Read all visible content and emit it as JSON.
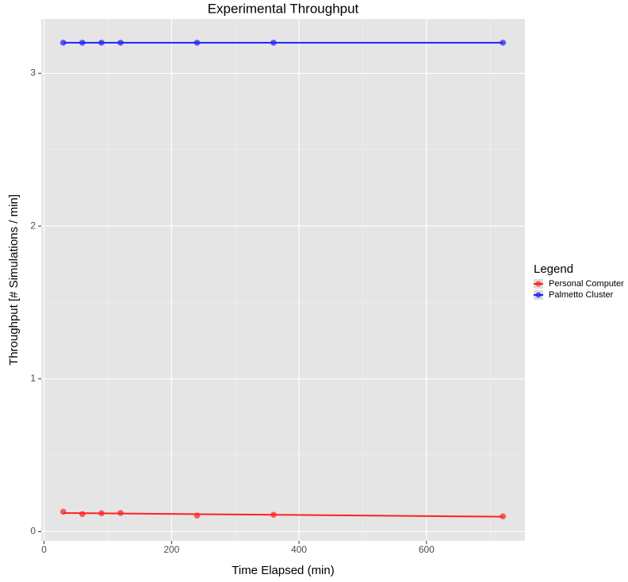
{
  "chart_data": {
    "type": "scatter",
    "title": "Experimental Throughput",
    "x_label": "Time Elapsed (min)",
    "y_label": "Throughput [# Simulations / min]",
    "legend_title": "Legend",
    "x": [
      30,
      60,
      90,
      120,
      240,
      360,
      720
    ],
    "series": [
      {
        "name": "Personal Computer",
        "color": "#ff2020",
        "values": [
          0.13,
          0.115,
          0.12,
          0.122,
          0.105,
          0.11,
          0.1
        ]
      },
      {
        "name": "Palmetto Cluster",
        "color": "#2020ff",
        "values": [
          3.2,
          3.2,
          3.2,
          3.2,
          3.2,
          3.2,
          3.2
        ]
      }
    ],
    "xlim": [
      -4.5,
      754.5
    ],
    "xticks": [
      0,
      200,
      400,
      600
    ],
    "ylim": [
      -0.06,
      3.355
    ],
    "yticks": [
      0,
      1,
      2,
      3
    ],
    "grid": true,
    "legend_position": "right"
  }
}
